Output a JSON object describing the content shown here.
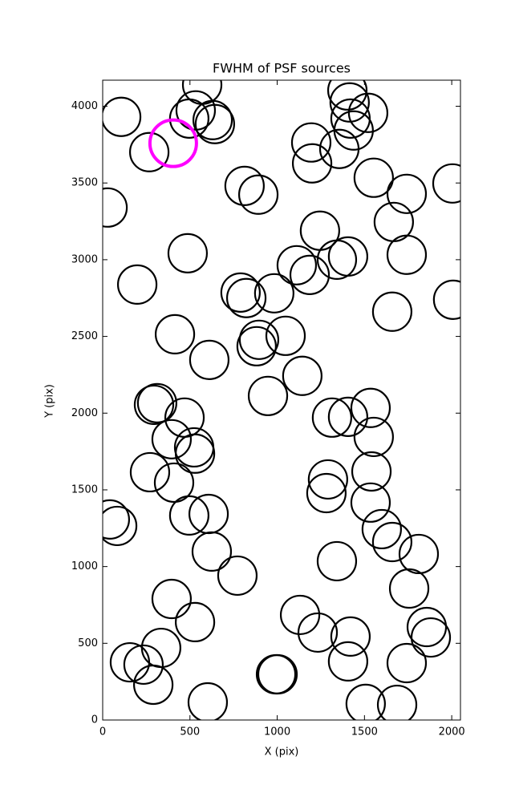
{
  "chart_data": {
    "type": "scatter",
    "title": "FWHM of PSF sources",
    "x_label": "X (pix)",
    "y_label": "Y (pix)",
    "xlim": [
      0,
      2050
    ],
    "ylim": [
      0,
      4170
    ],
    "xticks": [
      0,
      500,
      1000,
      1500,
      2000
    ],
    "yticks": [
      0,
      500,
      1000,
      1500,
      2000,
      2500,
      3000,
      3500,
      4000
    ],
    "grid": false,
    "series": [
      {
        "color": "#000000",
        "x": [
          106,
          267,
          496,
          533,
          570,
          630,
          643,
          28,
          813,
          892,
          1195,
          1200,
          1356,
          1402,
          1415,
          1420,
          1438,
          1521,
          1553,
          1742,
          1668,
          2004,
          1245,
          1112,
          1186,
          1342,
          1406,
          1742,
          487,
          198,
          790,
          823,
          983,
          2008,
          1659,
          414,
          611,
          882,
          896,
          1048,
          1144,
          947,
          294,
          312,
          469,
          1314,
          1406,
          1535,
          1553,
          395,
          524,
          529,
          271,
          409,
          1291,
          1282,
          1540,
          1535,
          41,
          83,
          496,
          607,
          1599,
          1659,
          625,
          1811,
          1342,
          772,
          1756,
          395,
          529,
          1131,
          1232,
          1420,
          1857,
          1880,
          335,
          156,
          234,
          290,
          1406,
          1742,
          993,
          1002,
          602,
          1507,
          1687
        ],
        "y": [
          3931,
          3701,
          3920,
          3973,
          4140,
          3910,
          3884,
          3340,
          3481,
          3424,
          3764,
          3628,
          3722,
          4103,
          4025,
          3920,
          3842,
          3957,
          3534,
          3429,
          3246,
          3497,
          3189,
          2964,
          2901,
          3000,
          3021,
          3032,
          3042,
          2838,
          2786,
          2750,
          2781,
          2739,
          2661,
          2514,
          2347,
          2436,
          2478,
          2504,
          2243,
          2112,
          2054,
          2065,
          1971,
          1971,
          1976,
          2034,
          1845,
          1830,
          1777,
          1736,
          1615,
          1547,
          1568,
          1479,
          1620,
          1417,
          1307,
          1265,
          1333,
          1343,
          1244,
          1160,
          1098,
          1082,
          1035,
          941,
          857,
          789,
          638,
          685,
          570,
          544,
          606,
          538,
          470,
          376,
          361,
          230,
          382,
          371,
          298,
          298,
          115,
          105,
          99
        ]
      },
      {
        "color": "#ff00ff",
        "x": [
          404
        ],
        "y": [
          3759
        ]
      }
    ]
  }
}
